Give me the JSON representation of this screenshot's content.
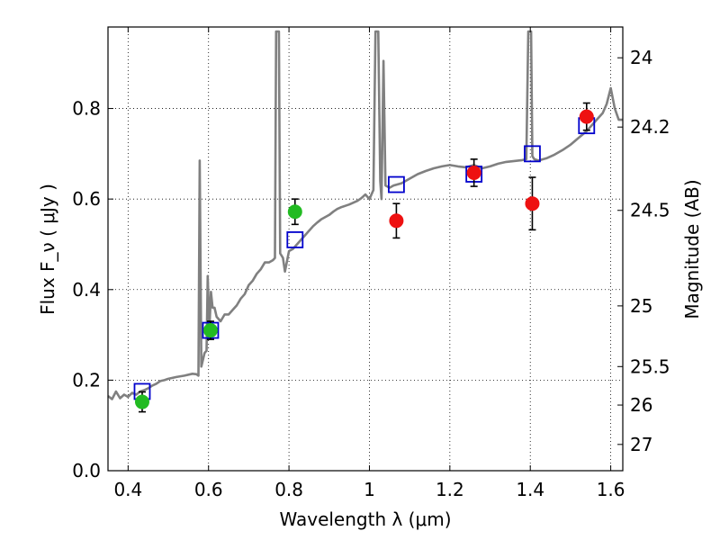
{
  "chart_data": {
    "type": "scatter",
    "xlabel": "Wavelength  λ (μm)",
    "ylabel": "Flux  F_ν ( μJy )",
    "ylabel_right": "Magnitude (AB)",
    "xlim": [
      0.35,
      1.63
    ],
    "ylim": [
      0.0,
      0.98
    ],
    "x_ticks": [
      0.4,
      0.6,
      0.8,
      1.0,
      1.2,
      1.4,
      1.6
    ],
    "x_tick_labels": [
      "0.4",
      "0.6",
      "0.8",
      "1",
      "1.2",
      "1.4",
      "1.6"
    ],
    "y_ticks": [
      0.0,
      0.2,
      0.4,
      0.6,
      0.8
    ],
    "y_tick_labels": [
      "0.0",
      "0.2",
      "0.4",
      "0.6",
      "0.8"
    ],
    "right_ticks": [
      {
        "label": "24",
        "flux": 0.912
      },
      {
        "label": "24.2",
        "flux": 0.759
      },
      {
        "label": "24.5",
        "flux": 0.575
      },
      {
        "label": "25",
        "flux": 0.364
      },
      {
        "label": "25.5",
        "flux": 0.23
      },
      {
        "label": "26",
        "flux": 0.145
      },
      {
        "label": "27",
        "flux": 0.058
      }
    ],
    "grid": true,
    "colors": {
      "spectrum": "#808080",
      "model": "#0000cc",
      "green": "#22bb22",
      "red": "#ee1111",
      "errorbar": "#000000"
    },
    "series": [
      {
        "style": "line",
        "color": "#808080",
        "points": [
          [
            0.35,
            0.165
          ],
          [
            0.36,
            0.158
          ],
          [
            0.37,
            0.175
          ],
          [
            0.38,
            0.16
          ],
          [
            0.39,
            0.168
          ],
          [
            0.4,
            0.163
          ],
          [
            0.41,
            0.172
          ],
          [
            0.42,
            0.168
          ],
          [
            0.43,
            0.175
          ],
          [
            0.44,
            0.178
          ],
          [
            0.45,
            0.182
          ],
          [
            0.46,
            0.188
          ],
          [
            0.47,
            0.192
          ],
          [
            0.48,
            0.198
          ],
          [
            0.49,
            0.2
          ],
          [
            0.5,
            0.203
          ],
          [
            0.52,
            0.207
          ],
          [
            0.54,
            0.21
          ],
          [
            0.56,
            0.214
          ],
          [
            0.57,
            0.213
          ],
          [
            0.575,
            0.21
          ],
          [
            0.578,
            0.685
          ],
          [
            0.582,
            0.23
          ],
          [
            0.59,
            0.26
          ],
          [
            0.595,
            0.265
          ],
          [
            0.598,
            0.43
          ],
          [
            0.602,
            0.31
          ],
          [
            0.606,
            0.395
          ],
          [
            0.61,
            0.36
          ],
          [
            0.615,
            0.36
          ],
          [
            0.62,
            0.34
          ],
          [
            0.63,
            0.33
          ],
          [
            0.64,
            0.345
          ],
          [
            0.65,
            0.345
          ],
          [
            0.66,
            0.355
          ],
          [
            0.67,
            0.365
          ],
          [
            0.68,
            0.38
          ],
          [
            0.69,
            0.39
          ],
          [
            0.7,
            0.41
          ],
          [
            0.71,
            0.42
          ],
          [
            0.72,
            0.435
          ],
          [
            0.73,
            0.445
          ],
          [
            0.74,
            0.46
          ],
          [
            0.75,
            0.46
          ],
          [
            0.76,
            0.465
          ],
          [
            0.765,
            0.47
          ],
          [
            0.768,
            0.97
          ],
          [
            0.775,
            0.97
          ],
          [
            0.778,
            0.48
          ],
          [
            0.785,
            0.47
          ],
          [
            0.79,
            0.44
          ],
          [
            0.8,
            0.485
          ],
          [
            0.81,
            0.49
          ],
          [
            0.82,
            0.5
          ],
          [
            0.83,
            0.51
          ],
          [
            0.84,
            0.52
          ],
          [
            0.85,
            0.53
          ],
          [
            0.86,
            0.54
          ],
          [
            0.87,
            0.548
          ],
          [
            0.88,
            0.555
          ],
          [
            0.89,
            0.56
          ],
          [
            0.9,
            0.565
          ],
          [
            0.91,
            0.572
          ],
          [
            0.92,
            0.578
          ],
          [
            0.93,
            0.582
          ],
          [
            0.94,
            0.585
          ],
          [
            0.95,
            0.588
          ],
          [
            0.96,
            0.592
          ],
          [
            0.97,
            0.596
          ],
          [
            0.98,
            0.602
          ],
          [
            0.99,
            0.61
          ],
          [
            1.0,
            0.6
          ],
          [
            1.005,
            0.61
          ],
          [
            1.01,
            0.62
          ],
          [
            1.015,
            0.97
          ],
          [
            1.022,
            0.97
          ],
          [
            1.027,
            0.64
          ],
          [
            1.03,
            0.6
          ],
          [
            1.035,
            0.905
          ],
          [
            1.04,
            0.63
          ],
          [
            1.05,
            0.625
          ],
          [
            1.06,
            0.63
          ],
          [
            1.08,
            0.635
          ],
          [
            1.1,
            0.645
          ],
          [
            1.12,
            0.655
          ],
          [
            1.14,
            0.662
          ],
          [
            1.16,
            0.668
          ],
          [
            1.18,
            0.672
          ],
          [
            1.2,
            0.675
          ],
          [
            1.22,
            0.672
          ],
          [
            1.24,
            0.67
          ],
          [
            1.26,
            0.675
          ],
          [
            1.28,
            0.668
          ],
          [
            1.3,
            0.672
          ],
          [
            1.32,
            0.678
          ],
          [
            1.34,
            0.682
          ],
          [
            1.36,
            0.684
          ],
          [
            1.38,
            0.686
          ],
          [
            1.39,
            0.688
          ],
          [
            1.395,
            0.97
          ],
          [
            1.402,
            0.97
          ],
          [
            1.405,
            0.695
          ],
          [
            1.41,
            0.688
          ],
          [
            1.42,
            0.685
          ],
          [
            1.44,
            0.69
          ],
          [
            1.46,
            0.698
          ],
          [
            1.48,
            0.708
          ],
          [
            1.5,
            0.72
          ],
          [
            1.52,
            0.735
          ],
          [
            1.54,
            0.75
          ],
          [
            1.56,
            0.77
          ],
          [
            1.58,
            0.79
          ],
          [
            1.59,
            0.81
          ],
          [
            1.6,
            0.845
          ],
          [
            1.61,
            0.8
          ],
          [
            1.62,
            0.775
          ],
          [
            1.63,
            0.775
          ]
        ]
      },
      {
        "style": "open-square",
        "color": "#0000cc",
        "points": [
          [
            0.435,
            0.175
          ],
          [
            0.605,
            0.31
          ],
          [
            0.815,
            0.51
          ],
          [
            1.067,
            0.632
          ],
          [
            1.26,
            0.655
          ],
          [
            1.405,
            0.7
          ],
          [
            1.54,
            0.762
          ]
        ]
      },
      {
        "style": "filled-circle",
        "color": "#22bb22",
        "points": [
          [
            0.435,
            0.152,
            0.022
          ],
          [
            0.605,
            0.31,
            0.02
          ],
          [
            0.815,
            0.572,
            0.028
          ]
        ]
      },
      {
        "style": "filled-circle",
        "color": "#ee1111",
        "points": [
          [
            1.067,
            0.552,
            0.038
          ],
          [
            1.26,
            0.658,
            0.03
          ],
          [
            1.405,
            0.59,
            0.058
          ],
          [
            1.54,
            0.782,
            0.03
          ]
        ]
      }
    ]
  }
}
